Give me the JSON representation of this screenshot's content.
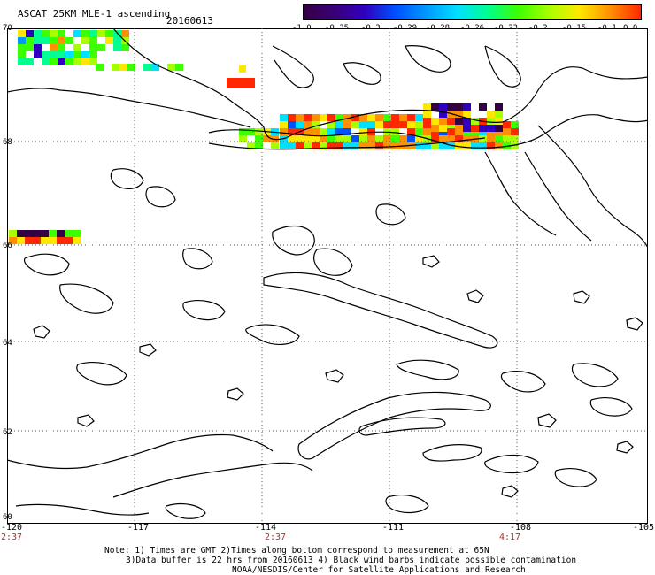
{
  "title": "ASCAT 25KM MLE-1 ascending",
  "date": "20160613",
  "colorbar": {
    "ticks": [
      "-1.0",
      "-0.35",
      "-0.3",
      "-0.29",
      "-0.28",
      "-0.26",
      "-0.23",
      "-0.2",
      "-0.15",
      "-0.1",
      "0.0"
    ],
    "colors": [
      "#330044",
      "#3a0078",
      "#3000c0",
      "#0050ff",
      "#0098ff",
      "#00e0ff",
      "#00ff90",
      "#3cff00",
      "#a8ff00",
      "#ffe800",
      "#ff9000",
      "#ff2800"
    ]
  },
  "map": {
    "lat_labels": [
      "70",
      "68",
      "66",
      "64",
      "62",
      "60"
    ],
    "lon_labels": [
      "-120",
      "-117",
      "-114",
      "-111",
      "-108",
      "-105"
    ],
    "time_labels": [
      "2:37",
      "2:37",
      "4:17"
    ],
    "coastline_color": "#000000",
    "grid_color": "#555555",
    "missing_value_color": "#ffffff"
  },
  "notes": [
    "Note: 1) Times are GMT 2)Times along bottom correspond to measurement at 65N",
    "3)Data buffer is 22 hrs from 20160613 4) Black wind barbs indicate possible contamination",
    "NOAA/NESDIS/Center for Satellite Applications and Research"
  ]
}
